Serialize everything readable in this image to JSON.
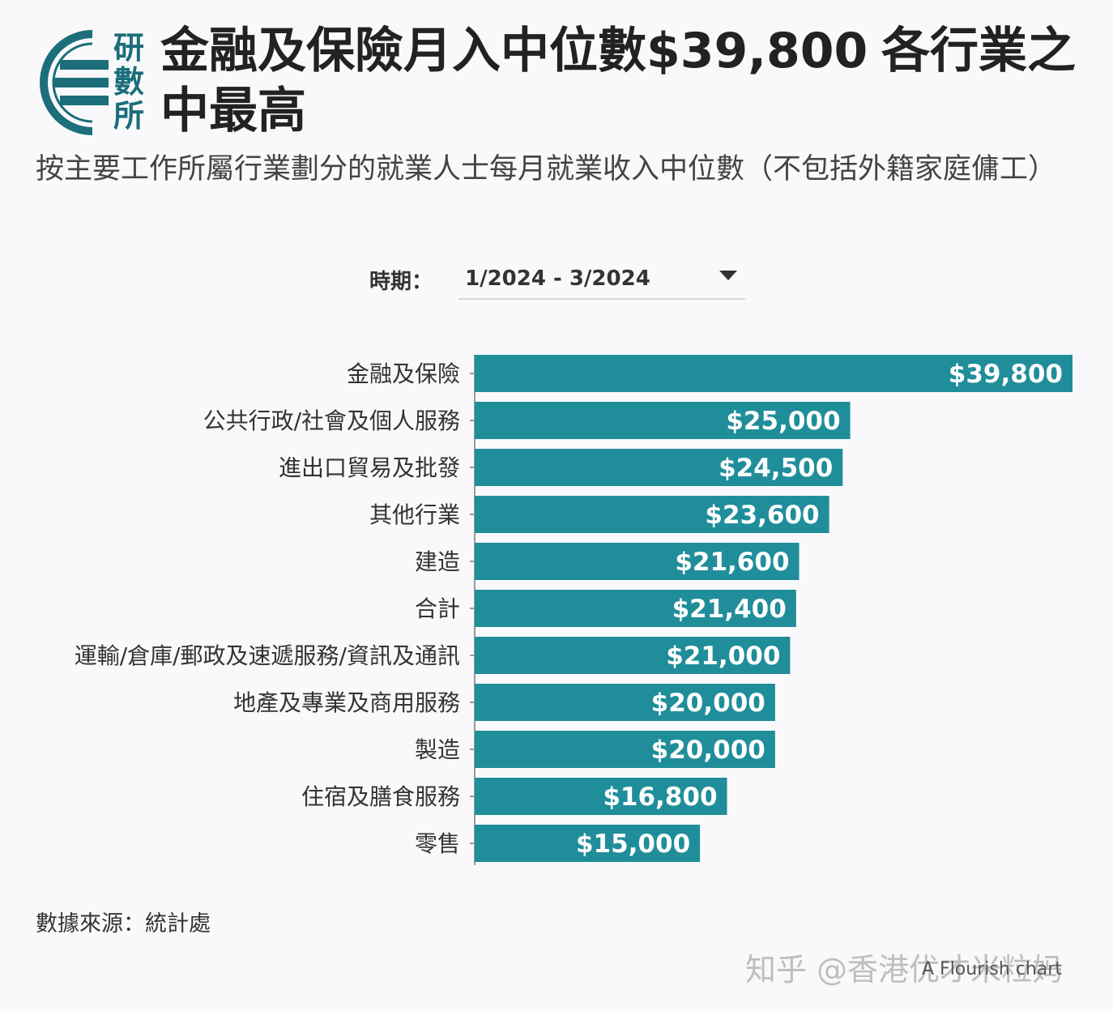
{
  "logo": {
    "chars": [
      "研",
      "數",
      "所"
    ]
  },
  "title": {
    "line1": "金融及保險月入中位數$39,800",
    "line1b": "各行業之",
    "line2": "中最高"
  },
  "subtitle": "按主要工作所屬行業劃分的就業人士每月就業收入中位數（不包括外籍家庭傭工）",
  "filter": {
    "label": "時期：",
    "value": "1/2024 - 3/2024"
  },
  "chart_data": {
    "type": "bar",
    "orientation": "horizontal",
    "categories": [
      "金融及保險",
      "公共行政/社會及個人服務",
      "進出口貿易及批發",
      "其他行業",
      "建造",
      "合計",
      "運輸/倉庫/郵政及速遞服務/資訊及通訊",
      "地產及專業及商用服務",
      "製造",
      "住宿及膳食服務",
      "零售"
    ],
    "values": [
      39800,
      25000,
      24500,
      23600,
      21600,
      21400,
      21000,
      20000,
      20000,
      16800,
      15000
    ],
    "labels": [
      "$39,800",
      "$25,000",
      "$24,500",
      "$23,600",
      "$21,600",
      "$21,400",
      "$21,000",
      "$20,000",
      "$20,000",
      "$16,800",
      "$15,000"
    ],
    "xlim": [
      0,
      39800
    ],
    "bar_color": "#1f8e9a",
    "grid": false
  },
  "source": "數據來源：統計處",
  "credit": "A Flourish chart",
  "watermark": "知乎 @香港优才米粒妈"
}
